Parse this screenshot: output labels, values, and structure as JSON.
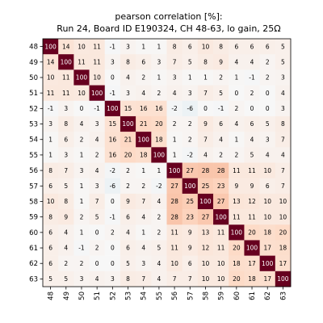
{
  "chart_data": {
    "type": "heatmap",
    "title": "pearson correlation [%]:",
    "subtitle": "Run 24, Board ID E190324, CH 48-63, lo gain, 25Ω",
    "x_labels": [
      "48",
      "49",
      "50",
      "51",
      "52",
      "53",
      "54",
      "55",
      "56",
      "57",
      "58",
      "59",
      "60",
      "61",
      "62",
      "63"
    ],
    "y_labels": [
      "48",
      "49",
      "50",
      "51",
      "52",
      "53",
      "54",
      "55",
      "56",
      "57",
      "58",
      "59",
      "60",
      "61",
      "62",
      "63"
    ],
    "value_range": [
      -100,
      100
    ],
    "colormap": "RdBu_r",
    "grid": false,
    "legend": "none",
    "values": [
      [
        100,
        14,
        10,
        11,
        -1,
        3,
        1,
        1,
        8,
        6,
        10,
        8,
        6,
        6,
        6,
        5
      ],
      [
        14,
        100,
        11,
        11,
        3,
        8,
        6,
        3,
        7,
        5,
        8,
        9,
        4,
        4,
        2,
        5
      ],
      [
        10,
        11,
        100,
        10,
        0,
        4,
        2,
        1,
        3,
        1,
        1,
        2,
        1,
        -1,
        2,
        3
      ],
      [
        11,
        11,
        10,
        100,
        -1,
        3,
        4,
        2,
        4,
        3,
        7,
        5,
        0,
        2,
        0,
        4
      ],
      [
        -1,
        3,
        0,
        -1,
        100,
        15,
        16,
        16,
        -2,
        -6,
        0,
        -1,
        2,
        0,
        0,
        3
      ],
      [
        3,
        8,
        4,
        3,
        15,
        100,
        21,
        20,
        2,
        2,
        9,
        6,
        4,
        6,
        5,
        8
      ],
      [
        1,
        6,
        2,
        4,
        16,
        21,
        100,
        18,
        1,
        2,
        7,
        4,
        1,
        4,
        3,
        7
      ],
      [
        1,
        3,
        1,
        2,
        16,
        20,
        18,
        100,
        1,
        -2,
        4,
        2,
        2,
        5,
        4,
        4
      ],
      [
        8,
        7,
        3,
        4,
        -2,
        2,
        1,
        1,
        100,
        27,
        28,
        28,
        11,
        11,
        10,
        7
      ],
      [
        6,
        5,
        1,
        3,
        -6,
        2,
        2,
        -2,
        27,
        100,
        25,
        23,
        9,
        9,
        6,
        7
      ],
      [
        10,
        8,
        1,
        7,
        0,
        9,
        7,
        4,
        28,
        25,
        100,
        27,
        13,
        12,
        10,
        10
      ],
      [
        8,
        9,
        2,
        5,
        -1,
        6,
        4,
        2,
        28,
        23,
        27,
        100,
        11,
        11,
        10,
        10
      ],
      [
        6,
        4,
        1,
        0,
        2,
        4,
        1,
        2,
        11,
        9,
        13,
        11,
        100,
        20,
        18,
        20
      ],
      [
        6,
        4,
        -1,
        2,
        0,
        6,
        4,
        5,
        11,
        9,
        12,
        11,
        20,
        100,
        17,
        18
      ],
      [
        6,
        2,
        2,
        0,
        0,
        5,
        3,
        4,
        10,
        6,
        10,
        10,
        18,
        17,
        100,
        17
      ],
      [
        5,
        5,
        3,
        4,
        3,
        8,
        7,
        4,
        7,
        7,
        10,
        10,
        20,
        18,
        17,
        100
      ]
    ]
  }
}
